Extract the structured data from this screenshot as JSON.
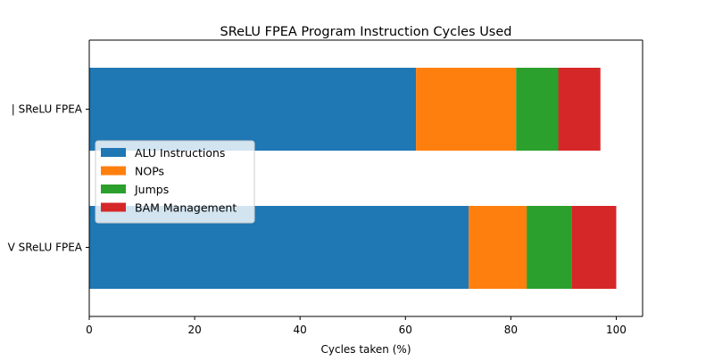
{
  "chart_data": {
    "type": "bar",
    "orientation": "horizontal",
    "stacked": true,
    "title": "SReLU FPEA Program Instruction Cycles Used",
    "xlabel": "Cycles taken (%)",
    "ylabel": "",
    "xlim": [
      0,
      105
    ],
    "xticks": [
      "0",
      "20",
      "40",
      "60",
      "80",
      "100"
    ],
    "grid": false,
    "legend_position": "center-left",
    "categories": [
      "V SReLU FPEA",
      "U SReLU FPEA"
    ],
    "category_labels_visible": [
      "V SReLU FPEA",
      "| SReLU FPEA"
    ],
    "series": [
      {
        "name": "ALU Instructions",
        "color": "#1f77b4",
        "values": [
          72,
          62
        ]
      },
      {
        "name": "NOPs",
        "color": "#ff7f0e",
        "values": [
          11,
          19
        ]
      },
      {
        "name": "Jumps",
        "color": "#2ca02c",
        "values": [
          8.5,
          8
        ]
      },
      {
        "name": "BAM Management",
        "color": "#d62728",
        "values": [
          8.5,
          8
        ]
      }
    ]
  }
}
